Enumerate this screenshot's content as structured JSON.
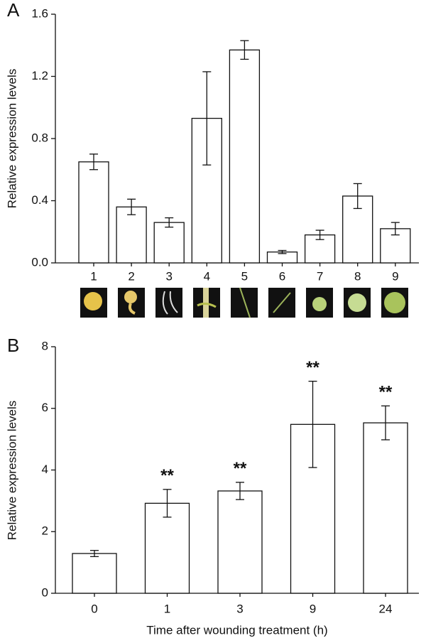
{
  "chart_data": [
    {
      "type": "bar",
      "panel_label": "A",
      "ylabel": "Relative expression levels",
      "categories": [
        "1",
        "2",
        "3",
        "4",
        "5",
        "6",
        "7",
        "8",
        "9"
      ],
      "values": [
        0.65,
        0.36,
        0.26,
        0.93,
        1.37,
        0.07,
        0.18,
        0.43,
        0.22
      ],
      "errors": [
        0.05,
        0.05,
        0.03,
        0.3,
        0.06,
        0.01,
        0.03,
        0.08,
        0.04
      ],
      "color": "#ffffff",
      "ylim": [
        0,
        1.6
      ],
      "yticks": [
        {
          "value": 0,
          "label": "0.0"
        },
        0.4,
        0.8,
        1.2,
        1.6
      ]
    },
    {
      "type": "bar",
      "panel_label": "B",
      "ylabel": "Relative expression levels",
      "xlabel": "Time after wounding treatment (h)",
      "categories": [
        "0",
        "1",
        "3",
        "9",
        "24"
      ],
      "values": [
        1.29,
        2.92,
        3.32,
        5.48,
        5.53
      ],
      "errors": [
        0.1,
        0.45,
        0.28,
        1.4,
        0.55
      ],
      "color": "#ffffff",
      "annotations": [
        {
          "x": "1",
          "text": "**"
        },
        {
          "x": "3",
          "text": "**"
        },
        {
          "x": "9",
          "text": "**"
        },
        {
          "x": "24",
          "text": "**"
        }
      ],
      "ylim": [
        0,
        8
      ],
      "yticks": [
        0,
        2,
        4,
        6,
        8
      ]
    }
  ]
}
